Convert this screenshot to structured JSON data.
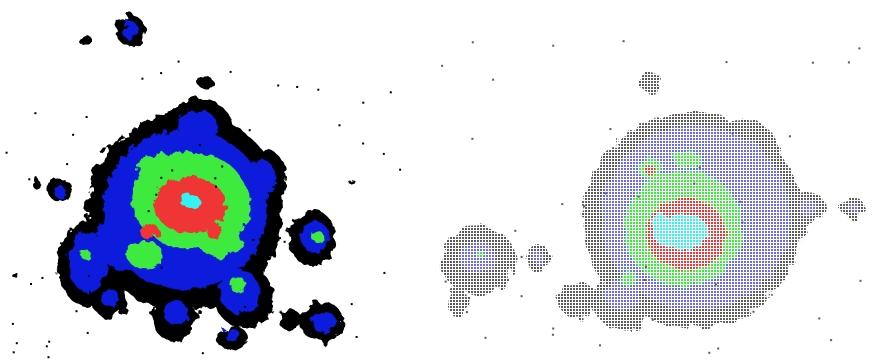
{
  "figure": {
    "panels": [
      {
        "id": "left",
        "style": "solid-blobs"
      },
      {
        "id": "right",
        "style": "pixel-grid"
      }
    ],
    "colors": {
      "outer_left": "#000000",
      "mid_left": "#0a1adc",
      "outer_right": "#5a5a5a",
      "mid_right": "#6b6bf0",
      "level_green": "#3dea3d",
      "level_red": "#f03535",
      "level_cyan": "#33f2f2",
      "background": "#ffffff"
    }
  }
}
